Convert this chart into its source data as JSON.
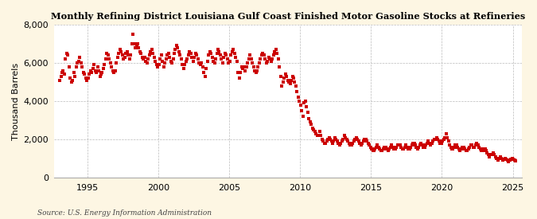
{
  "title": "Monthly Refining District Louisiana Gulf Coast Finished Motor Gasoline Stocks at Refineries",
  "ylabel": "Thousand Barrels",
  "source": "Source: U.S. Energy Information Administration",
  "figure_bg_color": "#fdf6e3",
  "plot_bg_color": "#ffffff",
  "dot_color": "#cc0000",
  "grid_color": "#bbbbbb",
  "ylim": [
    0,
    8000
  ],
  "yticks": [
    0,
    2000,
    4000,
    6000,
    8000
  ],
  "xtick_years": [
    1995,
    2000,
    2005,
    2010,
    2015,
    2020,
    2025
  ],
  "data": [
    [
      1993,
      1,
      5100
    ],
    [
      1993,
      2,
      5300
    ],
    [
      1993,
      3,
      5500
    ],
    [
      1993,
      4,
      5600
    ],
    [
      1993,
      5,
      5400
    ],
    [
      1993,
      6,
      6200
    ],
    [
      1993,
      7,
      6500
    ],
    [
      1993,
      8,
      6400
    ],
    [
      1993,
      9,
      5800
    ],
    [
      1993,
      10,
      5200
    ],
    [
      1993,
      11,
      5000
    ],
    [
      1993,
      12,
      5100
    ],
    [
      1994,
      1,
      5500
    ],
    [
      1994,
      2,
      5300
    ],
    [
      1994,
      3,
      5800
    ],
    [
      1994,
      4,
      6000
    ],
    [
      1994,
      5,
      6100
    ],
    [
      1994,
      6,
      6300
    ],
    [
      1994,
      7,
      6000
    ],
    [
      1994,
      8,
      5800
    ],
    [
      1994,
      9,
      5500
    ],
    [
      1994,
      10,
      5400
    ],
    [
      1994,
      11,
      5200
    ],
    [
      1994,
      12,
      5100
    ],
    [
      1995,
      1,
      5200
    ],
    [
      1995,
      2,
      5400
    ],
    [
      1995,
      3,
      5600
    ],
    [
      1995,
      4,
      5500
    ],
    [
      1995,
      5,
      5700
    ],
    [
      1995,
      6,
      5900
    ],
    [
      1995,
      7,
      5600
    ],
    [
      1995,
      8,
      5500
    ],
    [
      1995,
      9,
      5800
    ],
    [
      1995,
      10,
      5600
    ],
    [
      1995,
      11,
      5300
    ],
    [
      1995,
      12,
      5400
    ],
    [
      1996,
      1,
      5500
    ],
    [
      1996,
      2,
      5700
    ],
    [
      1996,
      3,
      5900
    ],
    [
      1996,
      4,
      6200
    ],
    [
      1996,
      5,
      6500
    ],
    [
      1996,
      6,
      6400
    ],
    [
      1996,
      7,
      6200
    ],
    [
      1996,
      8,
      6000
    ],
    [
      1996,
      9,
      5800
    ],
    [
      1996,
      10,
      5600
    ],
    [
      1996,
      11,
      5500
    ],
    [
      1996,
      12,
      5600
    ],
    [
      1997,
      1,
      6000
    ],
    [
      1997,
      2,
      6300
    ],
    [
      1997,
      3,
      6500
    ],
    [
      1997,
      4,
      6700
    ],
    [
      1997,
      5,
      6600
    ],
    [
      1997,
      6,
      6400
    ],
    [
      1997,
      7,
      6200
    ],
    [
      1997,
      8,
      6300
    ],
    [
      1997,
      9,
      6500
    ],
    [
      1997,
      10,
      6600
    ],
    [
      1997,
      11,
      6400
    ],
    [
      1997,
      12,
      6200
    ],
    [
      1998,
      1,
      6400
    ],
    [
      1998,
      2,
      7000
    ],
    [
      1998,
      3,
      7500
    ],
    [
      1998,
      4,
      7000
    ],
    [
      1998,
      5,
      6800
    ],
    [
      1998,
      6,
      6900
    ],
    [
      1998,
      7,
      7000
    ],
    [
      1998,
      8,
      6800
    ],
    [
      1998,
      9,
      6600
    ],
    [
      1998,
      10,
      6500
    ],
    [
      1998,
      11,
      6300
    ],
    [
      1998,
      12,
      6200
    ],
    [
      1999,
      1,
      6300
    ],
    [
      1999,
      2,
      6100
    ],
    [
      1999,
      3,
      6000
    ],
    [
      1999,
      4,
      6200
    ],
    [
      1999,
      5,
      6400
    ],
    [
      1999,
      6,
      6600
    ],
    [
      1999,
      7,
      6700
    ],
    [
      1999,
      8,
      6500
    ],
    [
      1999,
      9,
      6300
    ],
    [
      1999,
      10,
      6100
    ],
    [
      1999,
      11,
      5900
    ],
    [
      1999,
      12,
      5800
    ],
    [
      2000,
      1,
      5900
    ],
    [
      2000,
      2,
      6200
    ],
    [
      2000,
      3,
      6400
    ],
    [
      2000,
      4,
      6100
    ],
    [
      2000,
      5,
      5800
    ],
    [
      2000,
      6,
      6000
    ],
    [
      2000,
      7,
      6200
    ],
    [
      2000,
      8,
      6400
    ],
    [
      2000,
      9,
      6500
    ],
    [
      2000,
      10,
      6300
    ],
    [
      2000,
      11,
      6100
    ],
    [
      2000,
      12,
      6000
    ],
    [
      2001,
      1,
      6200
    ],
    [
      2001,
      2,
      6500
    ],
    [
      2001,
      3,
      6700
    ],
    [
      2001,
      4,
      6900
    ],
    [
      2001,
      5,
      6800
    ],
    [
      2001,
      6,
      6600
    ],
    [
      2001,
      7,
      6400
    ],
    [
      2001,
      8,
      6200
    ],
    [
      2001,
      9,
      5900
    ],
    [
      2001,
      10,
      5700
    ],
    [
      2001,
      11,
      5900
    ],
    [
      2001,
      12,
      6100
    ],
    [
      2002,
      1,
      6200
    ],
    [
      2002,
      2,
      6400
    ],
    [
      2002,
      3,
      6600
    ],
    [
      2002,
      4,
      6500
    ],
    [
      2002,
      5,
      6300
    ],
    [
      2002,
      6,
      6100
    ],
    [
      2002,
      7,
      6300
    ],
    [
      2002,
      8,
      6500
    ],
    [
      2002,
      9,
      6400
    ],
    [
      2002,
      10,
      6200
    ],
    [
      2002,
      11,
      6000
    ],
    [
      2002,
      12,
      5900
    ],
    [
      2003,
      1,
      6000
    ],
    [
      2003,
      2,
      5800
    ],
    [
      2003,
      3,
      5500
    ],
    [
      2003,
      4,
      5300
    ],
    [
      2003,
      5,
      5700
    ],
    [
      2003,
      6,
      6100
    ],
    [
      2003,
      7,
      6400
    ],
    [
      2003,
      8,
      6600
    ],
    [
      2003,
      9,
      6500
    ],
    [
      2003,
      10,
      6300
    ],
    [
      2003,
      11,
      6100
    ],
    [
      2003,
      12,
      6000
    ],
    [
      2004,
      1,
      6200
    ],
    [
      2004,
      2,
      6500
    ],
    [
      2004,
      3,
      6700
    ],
    [
      2004,
      4,
      6600
    ],
    [
      2004,
      5,
      6400
    ],
    [
      2004,
      6,
      6200
    ],
    [
      2004,
      7,
      6000
    ],
    [
      2004,
      8,
      6300
    ],
    [
      2004,
      9,
      6500
    ],
    [
      2004,
      10,
      6400
    ],
    [
      2004,
      11,
      6200
    ],
    [
      2004,
      12,
      6000
    ],
    [
      2005,
      1,
      6100
    ],
    [
      2005,
      2,
      6400
    ],
    [
      2005,
      3,
      6600
    ],
    [
      2005,
      4,
      6700
    ],
    [
      2005,
      5,
      6500
    ],
    [
      2005,
      6,
      6300
    ],
    [
      2005,
      7,
      6100
    ],
    [
      2005,
      8,
      5500
    ],
    [
      2005,
      9,
      5200
    ],
    [
      2005,
      10,
      5500
    ],
    [
      2005,
      11,
      5800
    ],
    [
      2005,
      12,
      5700
    ],
    [
      2006,
      1,
      5800
    ],
    [
      2006,
      2,
      5600
    ],
    [
      2006,
      3,
      5800
    ],
    [
      2006,
      4,
      6000
    ],
    [
      2006,
      5,
      6200
    ],
    [
      2006,
      6,
      6400
    ],
    [
      2006,
      7,
      6200
    ],
    [
      2006,
      8,
      6000
    ],
    [
      2006,
      9,
      5800
    ],
    [
      2006,
      10,
      5600
    ],
    [
      2006,
      11,
      5500
    ],
    [
      2006,
      12,
      5600
    ],
    [
      2007,
      1,
      5800
    ],
    [
      2007,
      2,
      6000
    ],
    [
      2007,
      3,
      6200
    ],
    [
      2007,
      4,
      6400
    ],
    [
      2007,
      5,
      6500
    ],
    [
      2007,
      6,
      6400
    ],
    [
      2007,
      7,
      6200
    ],
    [
      2007,
      8,
      6000
    ],
    [
      2007,
      9,
      6100
    ],
    [
      2007,
      10,
      6300
    ],
    [
      2007,
      11,
      6200
    ],
    [
      2007,
      12,
      6100
    ],
    [
      2008,
      1,
      6200
    ],
    [
      2008,
      2,
      6400
    ],
    [
      2008,
      3,
      6600
    ],
    [
      2008,
      4,
      6700
    ],
    [
      2008,
      5,
      6500
    ],
    [
      2008,
      6,
      6200
    ],
    [
      2008,
      7,
      5800
    ],
    [
      2008,
      8,
      5300
    ],
    [
      2008,
      9,
      4800
    ],
    [
      2008,
      10,
      5000
    ],
    [
      2008,
      11,
      5200
    ],
    [
      2008,
      12,
      5400
    ],
    [
      2009,
      1,
      5300
    ],
    [
      2009,
      2,
      5100
    ],
    [
      2009,
      3,
      5000
    ],
    [
      2009,
      4,
      4900
    ],
    [
      2009,
      5,
      5100
    ],
    [
      2009,
      6,
      5300
    ],
    [
      2009,
      7,
      5200
    ],
    [
      2009,
      8,
      5000
    ],
    [
      2009,
      9,
      4800
    ],
    [
      2009,
      10,
      4500
    ],
    [
      2009,
      11,
      4200
    ],
    [
      2009,
      12,
      4000
    ],
    [
      2010,
      1,
      3800
    ],
    [
      2010,
      2,
      3500
    ],
    [
      2010,
      3,
      3200
    ],
    [
      2010,
      4,
      3900
    ],
    [
      2010,
      5,
      4000
    ],
    [
      2010,
      6,
      3700
    ],
    [
      2010,
      7,
      3400
    ],
    [
      2010,
      8,
      3100
    ],
    [
      2010,
      9,
      2900
    ],
    [
      2010,
      10,
      2800
    ],
    [
      2010,
      11,
      2600
    ],
    [
      2010,
      12,
      2500
    ],
    [
      2011,
      1,
      2400
    ],
    [
      2011,
      2,
      2300
    ],
    [
      2011,
      3,
      2200
    ],
    [
      2011,
      4,
      2200
    ],
    [
      2011,
      5,
      2400
    ],
    [
      2011,
      6,
      2200
    ],
    [
      2011,
      7,
      2000
    ],
    [
      2011,
      8,
      1900
    ],
    [
      2011,
      9,
      1800
    ],
    [
      2011,
      10,
      1800
    ],
    [
      2011,
      11,
      1900
    ],
    [
      2011,
      12,
      2000
    ],
    [
      2012,
      1,
      2100
    ],
    [
      2012,
      2,
      2000
    ],
    [
      2012,
      3,
      1900
    ],
    [
      2012,
      4,
      1800
    ],
    [
      2012,
      5,
      1900
    ],
    [
      2012,
      6,
      2100
    ],
    [
      2012,
      7,
      2000
    ],
    [
      2012,
      8,
      1900
    ],
    [
      2012,
      9,
      1800
    ],
    [
      2012,
      10,
      1700
    ],
    [
      2012,
      11,
      1800
    ],
    [
      2012,
      12,
      1900
    ],
    [
      2013,
      1,
      2000
    ],
    [
      2013,
      2,
      2200
    ],
    [
      2013,
      3,
      2100
    ],
    [
      2013,
      4,
      2000
    ],
    [
      2013,
      5,
      1900
    ],
    [
      2013,
      6,
      1800
    ],
    [
      2013,
      7,
      1700
    ],
    [
      2013,
      8,
      1700
    ],
    [
      2013,
      9,
      1800
    ],
    [
      2013,
      10,
      1900
    ],
    [
      2013,
      11,
      2000
    ],
    [
      2013,
      12,
      2100
    ],
    [
      2014,
      1,
      2000
    ],
    [
      2014,
      2,
      1900
    ],
    [
      2014,
      3,
      1800
    ],
    [
      2014,
      4,
      1700
    ],
    [
      2014,
      5,
      1800
    ],
    [
      2014,
      6,
      1900
    ],
    [
      2014,
      7,
      2000
    ],
    [
      2014,
      8,
      2000
    ],
    [
      2014,
      9,
      1900
    ],
    [
      2014,
      10,
      1800
    ],
    [
      2014,
      11,
      1700
    ],
    [
      2014,
      12,
      1600
    ],
    [
      2015,
      1,
      1500
    ],
    [
      2015,
      2,
      1400
    ],
    [
      2015,
      3,
      1400
    ],
    [
      2015,
      4,
      1500
    ],
    [
      2015,
      5,
      1600
    ],
    [
      2015,
      6,
      1700
    ],
    [
      2015,
      7,
      1600
    ],
    [
      2015,
      8,
      1500
    ],
    [
      2015,
      9,
      1400
    ],
    [
      2015,
      10,
      1400
    ],
    [
      2015,
      11,
      1500
    ],
    [
      2015,
      12,
      1600
    ],
    [
      2016,
      1,
      1600
    ],
    [
      2016,
      2,
      1500
    ],
    [
      2016,
      3,
      1400
    ],
    [
      2016,
      4,
      1500
    ],
    [
      2016,
      5,
      1600
    ],
    [
      2016,
      6,
      1700
    ],
    [
      2016,
      7,
      1600
    ],
    [
      2016,
      8,
      1500
    ],
    [
      2016,
      9,
      1500
    ],
    [
      2016,
      10,
      1600
    ],
    [
      2016,
      11,
      1700
    ],
    [
      2016,
      12,
      1700
    ],
    [
      2017,
      1,
      1700
    ],
    [
      2017,
      2,
      1600
    ],
    [
      2017,
      3,
      1500
    ],
    [
      2017,
      4,
      1500
    ],
    [
      2017,
      5,
      1600
    ],
    [
      2017,
      6,
      1700
    ],
    [
      2017,
      7,
      1600
    ],
    [
      2017,
      8,
      1500
    ],
    [
      2017,
      9,
      1500
    ],
    [
      2017,
      10,
      1600
    ],
    [
      2017,
      11,
      1700
    ],
    [
      2017,
      12,
      1800
    ],
    [
      2018,
      1,
      1800
    ],
    [
      2018,
      2,
      1700
    ],
    [
      2018,
      3,
      1600
    ],
    [
      2018,
      4,
      1500
    ],
    [
      2018,
      5,
      1600
    ],
    [
      2018,
      6,
      1700
    ],
    [
      2018,
      7,
      1800
    ],
    [
      2018,
      8,
      1700
    ],
    [
      2018,
      9,
      1600
    ],
    [
      2018,
      10,
      1600
    ],
    [
      2018,
      11,
      1700
    ],
    [
      2018,
      12,
      1800
    ],
    [
      2019,
      1,
      1900
    ],
    [
      2019,
      2,
      1800
    ],
    [
      2019,
      3,
      1700
    ],
    [
      2019,
      4,
      1800
    ],
    [
      2019,
      5,
      1900
    ],
    [
      2019,
      6,
      2000
    ],
    [
      2019,
      7,
      2000
    ],
    [
      2019,
      8,
      2100
    ],
    [
      2019,
      9,
      2000
    ],
    [
      2019,
      10,
      1900
    ],
    [
      2019,
      11,
      1800
    ],
    [
      2019,
      12,
      1800
    ],
    [
      2020,
      1,
      1900
    ],
    [
      2020,
      2,
      2000
    ],
    [
      2020,
      3,
      2100
    ],
    [
      2020,
      4,
      2300
    ],
    [
      2020,
      5,
      2100
    ],
    [
      2020,
      6,
      1900
    ],
    [
      2020,
      7,
      1700
    ],
    [
      2020,
      8,
      1600
    ],
    [
      2020,
      9,
      1500
    ],
    [
      2020,
      10,
      1500
    ],
    [
      2020,
      11,
      1600
    ],
    [
      2020,
      12,
      1700
    ],
    [
      2021,
      1,
      1700
    ],
    [
      2021,
      2,
      1600
    ],
    [
      2021,
      3,
      1500
    ],
    [
      2021,
      4,
      1400
    ],
    [
      2021,
      5,
      1500
    ],
    [
      2021,
      6,
      1600
    ],
    [
      2021,
      7,
      1600
    ],
    [
      2021,
      8,
      1500
    ],
    [
      2021,
      9,
      1400
    ],
    [
      2021,
      10,
      1400
    ],
    [
      2021,
      11,
      1500
    ],
    [
      2021,
      12,
      1600
    ],
    [
      2022,
      1,
      1700
    ],
    [
      2022,
      2,
      1700
    ],
    [
      2022,
      3,
      1600
    ],
    [
      2022,
      4,
      1600
    ],
    [
      2022,
      5,
      1700
    ],
    [
      2022,
      6,
      1800
    ],
    [
      2022,
      7,
      1700
    ],
    [
      2022,
      8,
      1600
    ],
    [
      2022,
      9,
      1500
    ],
    [
      2022,
      10,
      1400
    ],
    [
      2022,
      11,
      1400
    ],
    [
      2022,
      12,
      1500
    ],
    [
      2023,
      1,
      1500
    ],
    [
      2023,
      2,
      1400
    ],
    [
      2023,
      3,
      1300
    ],
    [
      2023,
      4,
      1200
    ],
    [
      2023,
      5,
      1100
    ],
    [
      2023,
      6,
      1200
    ],
    [
      2023,
      7,
      1200
    ],
    [
      2023,
      8,
      1300
    ],
    [
      2023,
      9,
      1200
    ],
    [
      2023,
      10,
      1100
    ],
    [
      2023,
      11,
      1000
    ],
    [
      2023,
      12,
      900
    ],
    [
      2024,
      1,
      1000
    ],
    [
      2024,
      2,
      1100
    ],
    [
      2024,
      3,
      1000
    ],
    [
      2024,
      4,
      900
    ],
    [
      2024,
      5,
      950
    ],
    [
      2024,
      6,
      1000
    ],
    [
      2024,
      7,
      950
    ],
    [
      2024,
      8,
      900
    ],
    [
      2024,
      9,
      850
    ],
    [
      2024,
      10,
      900
    ],
    [
      2024,
      11,
      950
    ],
    [
      2024,
      12,
      1000
    ],
    [
      2025,
      1,
      950
    ],
    [
      2025,
      2,
      900
    ],
    [
      2025,
      3,
      880
    ]
  ]
}
